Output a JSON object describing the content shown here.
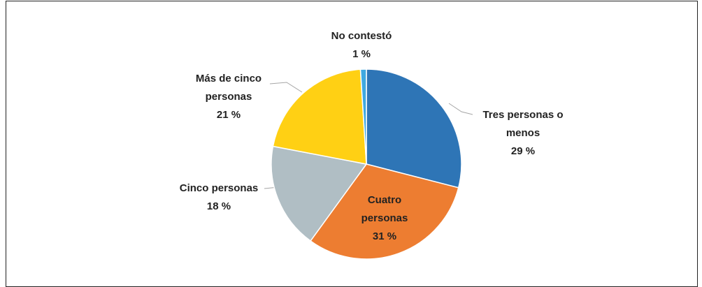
{
  "chart_data": {
    "type": "pie",
    "categories": [
      "Tres personas o menos",
      "Cuatro personas",
      "Cinco personas",
      "Más de cinco personas",
      "No contestó"
    ],
    "values": [
      29,
      31,
      18,
      21,
      1
    ],
    "value_labels": [
      "29 %",
      "31 %",
      "18 %",
      "21 %",
      "1 %"
    ],
    "colors": [
      "#2e75b6",
      "#ed7d31",
      "#b0bec4",
      "#ffd014",
      "#3fa9e0"
    ]
  }
}
